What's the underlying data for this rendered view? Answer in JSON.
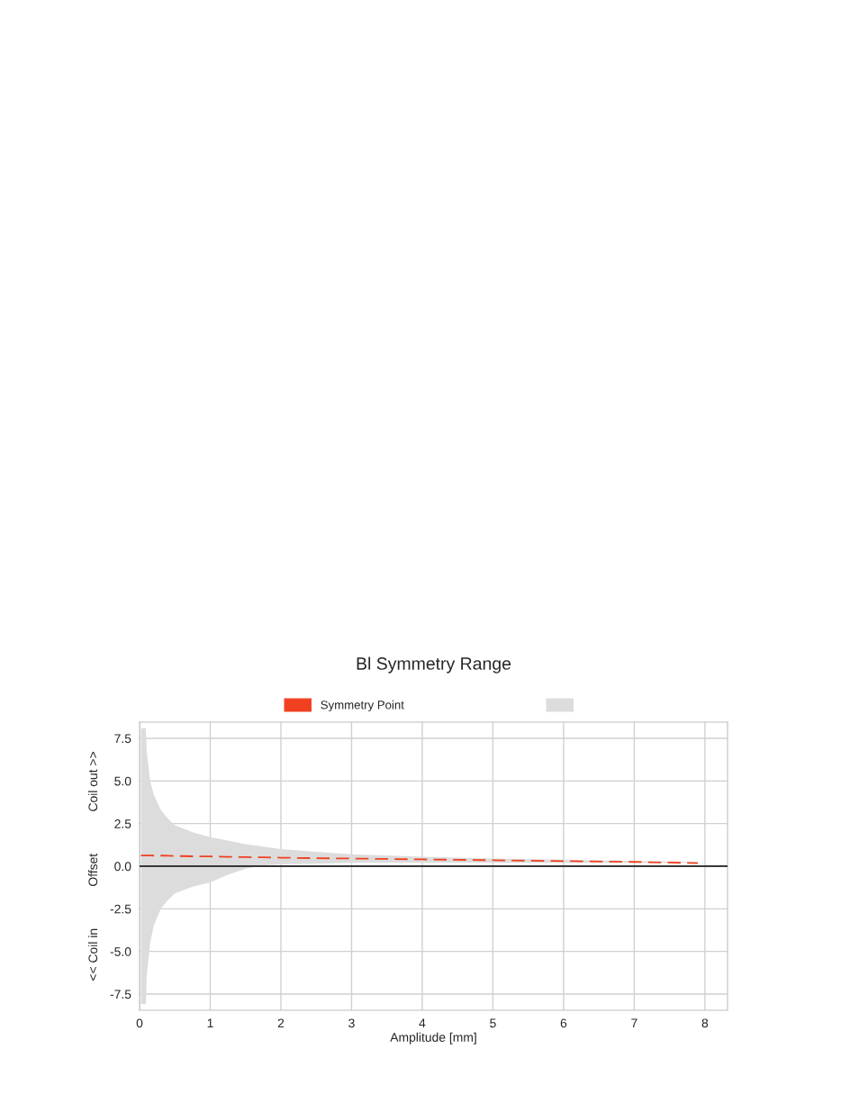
{
  "chart_data": {
    "type": "line",
    "title": "Bl Symmetry Range",
    "xlabel": "Amplitude [mm]",
    "ylabel": "<< Coil in            Offset            Coil out >>",
    "xlim": [
      0,
      8.32
    ],
    "ylim": [
      -8.45,
      8.45
    ],
    "xticks": [
      0,
      1,
      2,
      3,
      4,
      5,
      6,
      7,
      8
    ],
    "yticks": [
      {
        "value": -7.5,
        "label": "-7.5"
      },
      {
        "value": -5,
        "label": "-5.0"
      },
      {
        "value": -2.5,
        "label": "-2.5"
      },
      {
        "value": 0,
        "label": "0.0"
      },
      {
        "value": 2.5,
        "label": "2.5"
      },
      {
        "value": 5,
        "label": "5.0"
      },
      {
        "value": 7.5,
        "label": "7.5"
      }
    ],
    "grid": true,
    "legend": "top",
    "ref_lines": [
      {
        "axis": "y",
        "value": 0,
        "color": "#000000"
      }
    ],
    "series": [
      {
        "name": "Symmetry Point",
        "color": "#f04020",
        "line_style": "dashed",
        "x": [
          0.02,
          0.09,
          0.1,
          0.15,
          0.2,
          0.3,
          0.4,
          0.5,
          0.75,
          1,
          1.25,
          1.5,
          1.75,
          2,
          2.5,
          3,
          4,
          5,
          6,
          7,
          7.9
        ],
        "values": [
          0.63,
          0.63,
          0.63,
          0.63,
          0.62,
          0.62,
          0.61,
          0.6,
          0.58,
          0.57,
          0.55,
          0.53,
          0.52,
          0.5,
          0.47,
          0.45,
          0.4,
          0.35,
          0.3,
          0.25,
          0.18
        ],
        "upper": [
          8.1,
          8.1,
          6.8,
          5,
          4.2,
          3.3,
          2.8,
          2.4,
          2,
          1.7,
          1.5,
          1.3,
          1.15,
          1,
          0.85,
          0.7,
          0.55,
          0.45,
          0.38,
          0.3,
          0.25
        ],
        "lower": [
          -8.1,
          -8.1,
          -6.5,
          -4.5,
          -3.5,
          -2.5,
          -2,
          -1.6,
          -1.2,
          -0.95,
          -0.5,
          -0.15,
          0.05,
          0.1,
          0.15,
          0.2,
          0.2,
          0.2,
          0.2,
          0.2,
          0.2
        ]
      }
    ]
  }
}
